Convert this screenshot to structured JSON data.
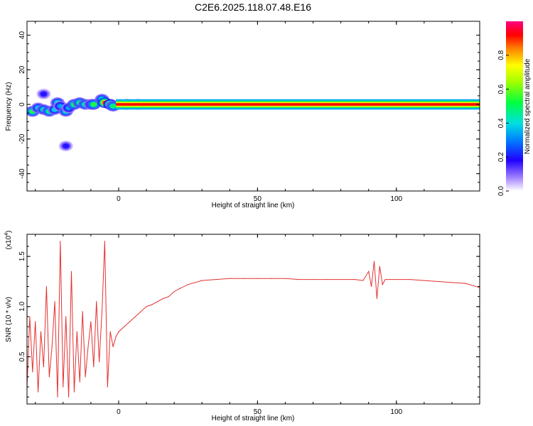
{
  "figure": {
    "title": "C2E6.2025.118.07.48.E16"
  },
  "colorbar": {
    "label": "Normalized spectral amplitude",
    "ticks": [
      {
        "value": 0.0,
        "label": "0.0"
      },
      {
        "value": 0.2,
        "label": "0.2"
      },
      {
        "value": 0.4,
        "label": "0.4"
      },
      {
        "value": 0.6,
        "label": "0.6"
      },
      {
        "value": 0.8,
        "label": "0.8"
      }
    ],
    "range": [
      0,
      1
    ]
  },
  "chart_data": [
    {
      "type": "heatmap",
      "title": "",
      "xlabel": "Height of straight line (km)",
      "ylabel": "Frequency (Hz)",
      "xlim": [
        -33,
        130
      ],
      "ylim": [
        -50,
        48
      ],
      "xticks": [
        {
          "value": 0,
          "label": "0"
        },
        {
          "value": 50,
          "label": "50"
        },
        {
          "value": 100,
          "label": "100"
        }
      ],
      "yticks": [
        {
          "value": -40,
          "label": "-40"
        },
        {
          "value": -20,
          "label": "-20"
        },
        {
          "value": 0,
          "label": "0"
        },
        {
          "value": 20,
          "label": "20"
        },
        {
          "value": 40,
          "label": "40"
        }
      ],
      "band": {
        "center_hz": 0,
        "half_width_hz": 1.5,
        "x_from_km": -1,
        "x_to_km": 130,
        "amplitude": 1.0
      },
      "blobs": [
        {
          "x": -31,
          "y": -4,
          "amp": 0.55
        },
        {
          "x": -29,
          "y": -2,
          "amp": 0.4
        },
        {
          "x": -27,
          "y": -3,
          "amp": 0.45
        },
        {
          "x": -25,
          "y": -4,
          "amp": 0.5
        },
        {
          "x": -23,
          "y": -3,
          "amp": 0.4
        },
        {
          "x": -22,
          "y": 1,
          "amp": 0.45
        },
        {
          "x": -21,
          "y": -1,
          "amp": 0.35
        },
        {
          "x": -19,
          "y": -4,
          "amp": 0.45
        },
        {
          "x": -18,
          "y": -2,
          "amp": 0.35
        },
        {
          "x": -16,
          "y": 0,
          "amp": 0.55
        },
        {
          "x": -14,
          "y": 1,
          "amp": 0.5
        },
        {
          "x": -12,
          "y": 0,
          "amp": 0.5
        },
        {
          "x": -10,
          "y": 0,
          "amp": 0.4
        },
        {
          "x": -9,
          "y": 0,
          "amp": 0.55
        },
        {
          "x": -6,
          "y": 3,
          "amp": 0.45
        },
        {
          "x": -5,
          "y": 1,
          "amp": 0.9
        },
        {
          "x": -3,
          "y": 0,
          "amp": 0.7
        },
        {
          "x": -2,
          "y": -1,
          "amp": 0.5
        },
        {
          "x": -27,
          "y": 6,
          "amp": 0.2
        },
        {
          "x": -19,
          "y": -24,
          "amp": 0.2
        },
        {
          "x": 3,
          "y": 0,
          "amp": 0.6
        },
        {
          "x": 7,
          "y": 0,
          "amp": 0.5
        },
        {
          "x": 89,
          "y": 1,
          "amp": 0.05
        },
        {
          "x": 105,
          "y": 1,
          "amp": 0.05
        }
      ]
    },
    {
      "type": "line",
      "title": "",
      "xlabel": "Height of straight line (km)",
      "ylabel": "SNR (10 * v/v)",
      "y_multiplier_label": "(x10",
      "y_multiplier_exp": "4",
      "y_multiplier_close": ")",
      "xlim": [
        -33,
        130
      ],
      "ylim": [
        0.03,
        1.72
      ],
      "xticks": [
        {
          "value": 0,
          "label": "0"
        },
        {
          "value": 50,
          "label": "50"
        },
        {
          "value": 100,
          "label": "100"
        }
      ],
      "yticks": [
        {
          "value": 0.5,
          "label": "0.5"
        },
        {
          "value": 1.0,
          "label": "1.0"
        },
        {
          "value": 1.5,
          "label": "1.5"
        }
      ],
      "series": [
        {
          "color": "#e53030",
          "x": [
            -33,
            -32,
            -31,
            -30,
            -29,
            -28,
            -27,
            -26,
            -25,
            -24,
            -23,
            -22,
            -21,
            -20,
            -19,
            -18,
            -17,
            -16,
            -15,
            -14,
            -13,
            -12,
            -11,
            -10,
            -9,
            -8,
            -7,
            -6,
            -5,
            -4,
            -3,
            -2,
            -1,
            0,
            2,
            4,
            6,
            8,
            10,
            12,
            14,
            16,
            18,
            20,
            22,
            25,
            30,
            35,
            40,
            45,
            50,
            55,
            60,
            65,
            70,
            75,
            80,
            85,
            88,
            90,
            91,
            92,
            93,
            94,
            95,
            96,
            100,
            105,
            110,
            115,
            120,
            125,
            130
          ],
          "y": [
            0.2,
            0.9,
            0.35,
            0.85,
            0.15,
            0.75,
            0.4,
            1.2,
            0.3,
            0.6,
            1.05,
            0.1,
            1.65,
            0.2,
            0.9,
            0.1,
            1.35,
            0.15,
            0.75,
            0.25,
            0.95,
            0.3,
            0.6,
            0.85,
            0.4,
            1.05,
            0.45,
            0.95,
            1.65,
            0.2,
            0.75,
            0.6,
            0.7,
            0.75,
            0.8,
            0.85,
            0.9,
            0.95,
            1.0,
            1.02,
            1.05,
            1.08,
            1.1,
            1.15,
            1.18,
            1.22,
            1.26,
            1.27,
            1.28,
            1.28,
            1.28,
            1.28,
            1.28,
            1.27,
            1.27,
            1.27,
            1.27,
            1.27,
            1.26,
            1.35,
            1.2,
            1.45,
            1.08,
            1.4,
            1.22,
            1.27,
            1.27,
            1.27,
            1.26,
            1.25,
            1.24,
            1.23,
            1.19
          ]
        }
      ]
    }
  ]
}
